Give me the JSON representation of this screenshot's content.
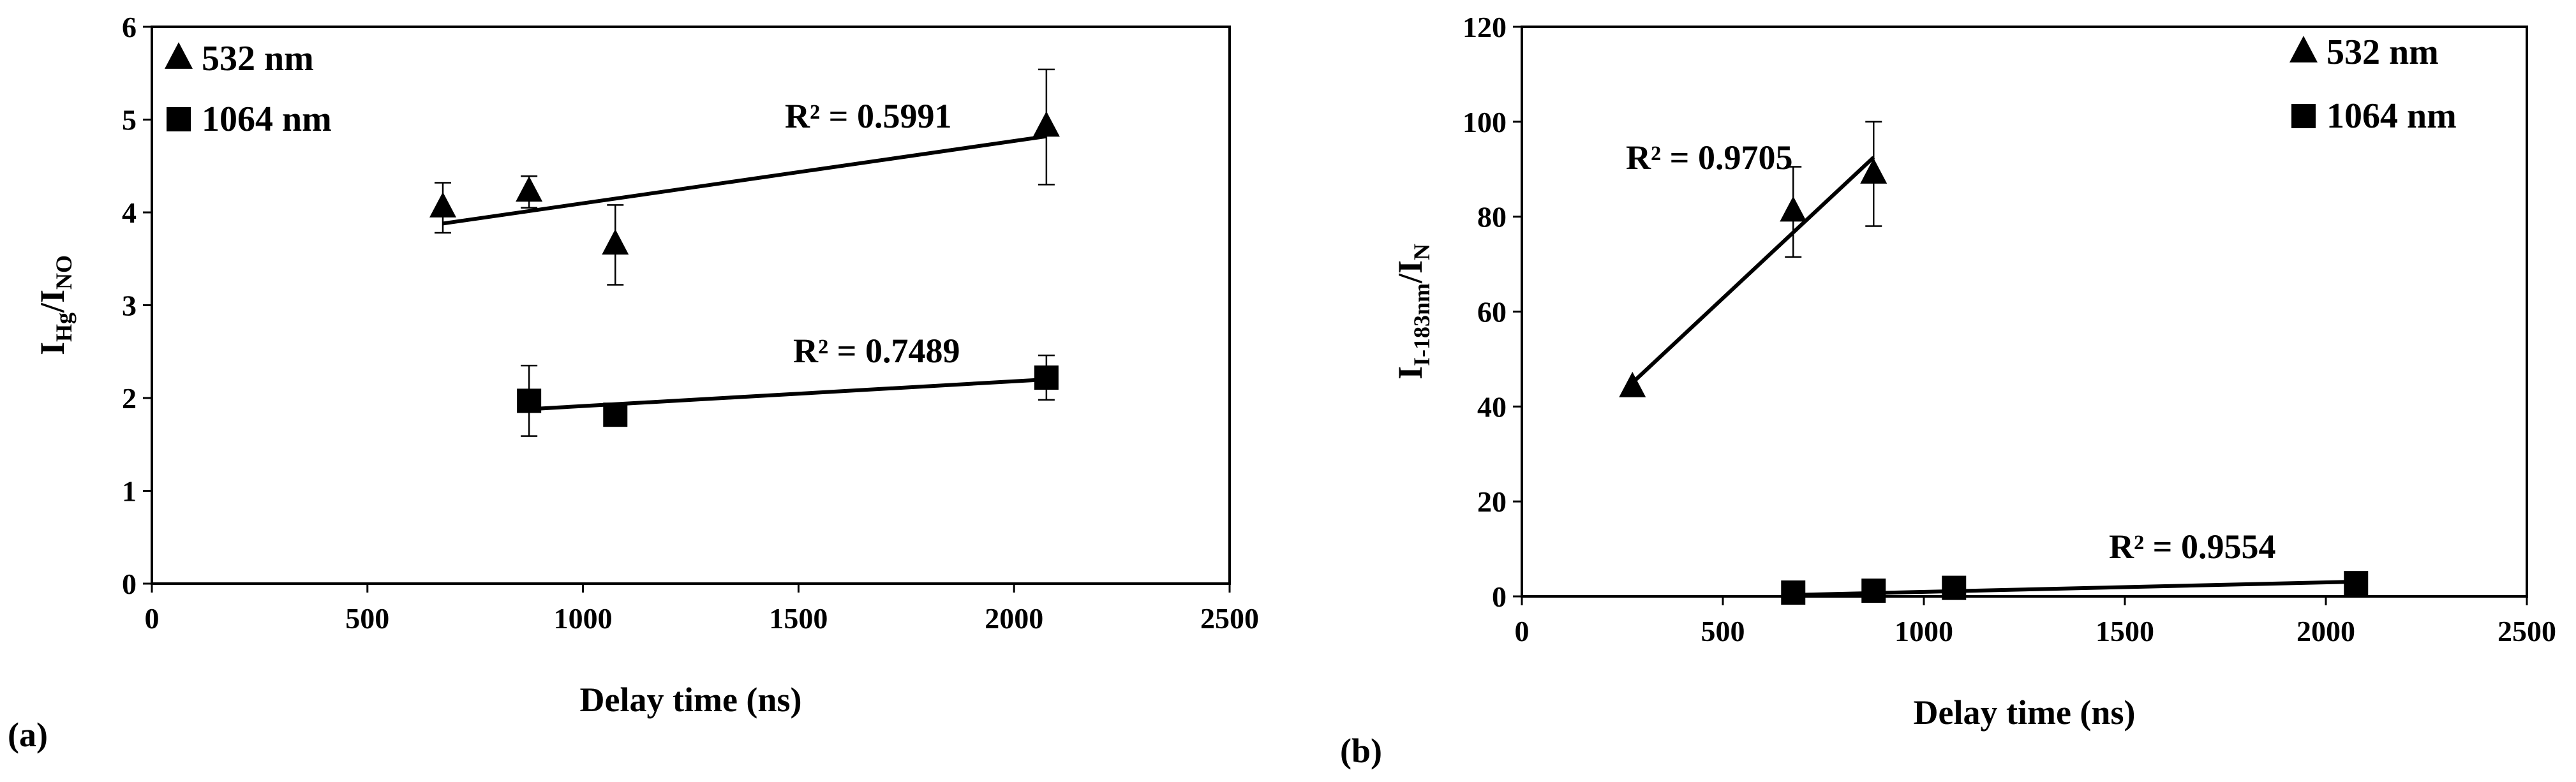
{
  "chart_data": [
    {
      "type": "scatter",
      "panel_label": "(a)",
      "xlabel": "Delay time (ns)",
      "ylabel": {
        "main": "I",
        "sub1": "Hg",
        "sep": "/I",
        "sub2": "NO"
      },
      "xlim": [
        0,
        2500
      ],
      "ylim": [
        0,
        6
      ],
      "xticks": [
        "0",
        "500",
        "1000",
        "1500",
        "2000",
        "2500"
      ],
      "yticks": [
        "0",
        "1",
        "2",
        "3",
        "4",
        "5",
        "6"
      ],
      "grid": false,
      "legend_position": "top-left",
      "series": [
        {
          "name": "532 nm",
          "marker": "triangle",
          "x": [
            675,
            875,
            1075,
            2075
          ],
          "y": [
            4.05,
            4.22,
            3.65,
            4.92
          ],
          "error": [
            0.27,
            0.17,
            0.43,
            0.62
          ],
          "trendline": {
            "x": [
              675,
              2075
            ],
            "y": [
              3.88,
              4.82
            ]
          },
          "r2_label": "R² = 0.5991"
        },
        {
          "name": "1064 nm",
          "marker": "square",
          "x": [
            875,
            1075,
            2075
          ],
          "y": [
            1.97,
            1.82,
            2.22
          ],
          "error": [
            0.38,
            0.0,
            0.24
          ],
          "trendline": {
            "x": [
              875,
              2075
            ],
            "y": [
              1.88,
              2.2
            ]
          },
          "r2_label": "R² = 0.7489"
        }
      ]
    },
    {
      "type": "scatter",
      "panel_label": "(b)",
      "xlabel": "Delay time (ns)",
      "ylabel": {
        "main": "I",
        "sub1": "I-183nm",
        "sep": "/I",
        "sub2": "N"
      },
      "xlim": [
        0,
        2500
      ],
      "ylim": [
        0,
        120
      ],
      "xticks": [
        "0",
        "500",
        "1000",
        "1500",
        "2000",
        "2500"
      ],
      "yticks": [
        "0",
        "20",
        "40",
        "60",
        "80",
        "100",
        "120"
      ],
      "grid": false,
      "legend_position": "top-right",
      "series": [
        {
          "name": "532 nm",
          "marker": "triangle",
          "x": [
            275,
            675,
            875
          ],
          "y": [
            44,
            81,
            89
          ],
          "error": [
            0,
            9.5,
            11
          ],
          "trendline": {
            "x": [
              275,
              875
            ],
            "y": [
              45,
              92.5
            ]
          },
          "r2_label": "R² = 0.9705"
        },
        {
          "name": "1064 nm",
          "marker": "square",
          "x": [
            675,
            875,
            1075,
            2075
          ],
          "y": [
            0.8,
            1.2,
            1.8,
            2.8
          ],
          "error": [
            0,
            0,
            0,
            0
          ],
          "trendline": {
            "x": [
              675,
              2075
            ],
            "y": [
              0.3,
              3.1
            ]
          },
          "r2_label": "R² = 0.9554"
        }
      ]
    }
  ]
}
